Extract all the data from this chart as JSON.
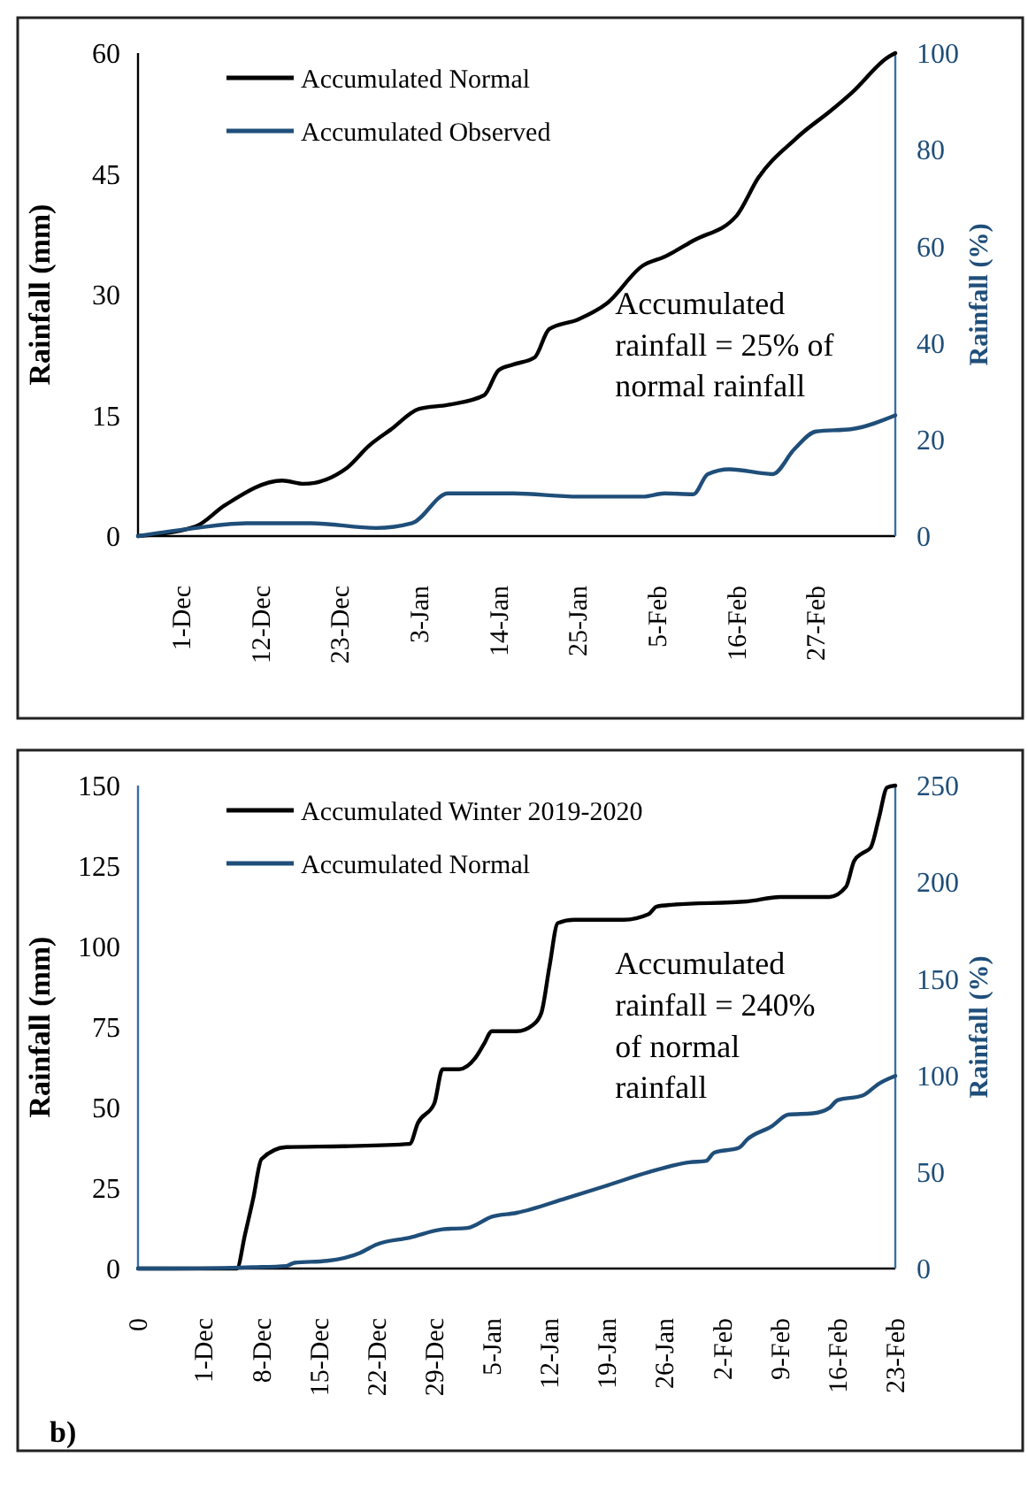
{
  "chart_data": [
    {
      "type": "line",
      "ylabel": "Rainfall (mm)",
      "y2label": "Rainfall (%)",
      "xlim": [
        "2019-11-25",
        "2020-03-09"
      ],
      "xticks": [
        {
          "value": "2019-12-01",
          "label": "1-Dec"
        },
        {
          "value": "2019-12-12",
          "label": "12-Dec"
        },
        {
          "value": "2019-12-23",
          "label": "23-Dec"
        },
        {
          "value": "2020-01-03",
          "label": "3-Jan"
        },
        {
          "value": "2020-01-14",
          "label": "14-Jan"
        },
        {
          "value": "2020-01-25",
          "label": "25-Jan"
        },
        {
          "value": "2020-02-05",
          "label": "5-Feb"
        },
        {
          "value": "2020-02-16",
          "label": "16-Feb"
        },
        {
          "value": "2020-02-27",
          "label": "27-Feb"
        }
      ],
      "ylim": [
        0,
        60
      ],
      "yticks": [
        0,
        15,
        30,
        45,
        60
      ],
      "y2lim": [
        0,
        100
      ],
      "y2ticks": [
        0,
        20,
        40,
        60,
        80,
        100
      ],
      "legend": "top left",
      "grid": false,
      "annotations": [
        "Accumulated rainfall = 25% of normal rainfall"
      ],
      "series": [
        {
          "name": "Accumulated Normal",
          "color": "#000000",
          "x": [
            "2019-11-25",
            "2019-12-03",
            "2019-12-07",
            "2019-12-15",
            "2019-12-18",
            "2019-12-24",
            "2019-12-27",
            "2019-12-30",
            "2020-01-03",
            "2020-01-07",
            "2020-01-12",
            "2020-01-14",
            "2020-01-16",
            "2020-01-19",
            "2020-01-21",
            "2020-01-25",
            "2020-01-29",
            "2020-02-03",
            "2020-02-06",
            "2020-02-10",
            "2020-02-16",
            "2020-02-19",
            "2020-02-24",
            "2020-02-25",
            "2020-02-29",
            "2020-03-03",
            "2020-03-08",
            "2020-03-09"
          ],
          "values": [
            0,
            1.2,
            3.8,
            6.9,
            6.5,
            8.5,
            11.2,
            13.2,
            15.8,
            16.3,
            17.5,
            20.6,
            21.3,
            22.2,
            25.7,
            26.9,
            28.9,
            33.6,
            34.7,
            36.7,
            39.8,
            44.5,
            49.2,
            50,
            52.8,
            55.1,
            59.5,
            60
          ]
        },
        {
          "name": "Accumulated Observed",
          "color": "#1f4e79",
          "x": [
            "2019-11-25",
            "2019-12-03",
            "2019-12-10",
            "2019-12-19",
            "2019-12-28",
            "2020-01-02",
            "2020-01-07",
            "2020-01-16",
            "2020-01-25",
            "2020-02-03",
            "2020-02-06",
            "2020-02-10",
            "2020-02-12",
            "2020-02-15",
            "2020-02-21",
            "2020-02-24",
            "2020-02-27",
            "2020-03-03",
            "2020-03-09"
          ],
          "values": [
            0,
            1,
            1.6,
            1.6,
            1,
            1.6,
            5.3,
            5.3,
            4.9,
            4.9,
            5.3,
            5.2,
            7.7,
            8.3,
            7.7,
            10.8,
            13,
            13.3,
            15
          ]
        }
      ]
    },
    {
      "type": "line",
      "ylabel": "Rainfall (mm)",
      "y2label": "Rainfall (%)",
      "xlim": [
        "2019-11-23",
        "2020-02-23"
      ],
      "xticks": [
        {
          "value": "2019-11-23",
          "label": "0"
        },
        {
          "value": "2019-12-01",
          "label": "1-Dec"
        },
        {
          "value": "2019-12-08",
          "label": "8-Dec"
        },
        {
          "value": "2019-12-15",
          "label": "15-Dec"
        },
        {
          "value": "2019-12-22",
          "label": "22-Dec"
        },
        {
          "value": "2019-12-29",
          "label": "29-Dec"
        },
        {
          "value": "2020-01-05",
          "label": "5-Jan"
        },
        {
          "value": "2020-01-12",
          "label": "12-Jan"
        },
        {
          "value": "2020-01-19",
          "label": "19-Jan"
        },
        {
          "value": "2020-01-26",
          "label": "26-Jan"
        },
        {
          "value": "2020-02-02",
          "label": "2-Feb"
        },
        {
          "value": "2020-02-09",
          "label": "9-Feb"
        },
        {
          "value": "2020-02-16",
          "label": "16-Feb"
        },
        {
          "value": "2020-02-23",
          "label": "23-Feb"
        }
      ],
      "ylim": [
        0,
        150
      ],
      "yticks": [
        0,
        25,
        50,
        75,
        100,
        125,
        150
      ],
      "y2lim": [
        0,
        250
      ],
      "y2ticks": [
        0,
        50,
        100,
        150,
        200,
        250
      ],
      "legend": "top left",
      "grid": false,
      "annotations": [
        "Accumulated rainfall = 240% of normal rainfall",
        "b)"
      ],
      "series": [
        {
          "name": "Accumulated Winter 2019-2020",
          "color": "#000000",
          "x": [
            "2019-11-23",
            "2019-12-05",
            "2019-12-06",
            "2019-12-07",
            "2019-12-08",
            "2019-12-11",
            "2019-12-18",
            "2019-12-26",
            "2019-12-27",
            "2019-12-29",
            "2019-12-30",
            "2020-01-01",
            "2020-01-03",
            "2020-01-04",
            "2020-01-05",
            "2020-01-08",
            "2020-01-10",
            "2020-01-11",
            "2020-01-12",
            "2020-01-13",
            "2020-01-15",
            "2020-01-21",
            "2020-01-24",
            "2020-01-25",
            "2020-01-27",
            "2020-02-05",
            "2020-02-09",
            "2020-02-15",
            "2020-02-17",
            "2020-02-18",
            "2020-02-19",
            "2020-02-20",
            "2020-02-21",
            "2020-02-22",
            "2020-02-23"
          ],
          "values": [
            0,
            0,
            10.6,
            21.8,
            34,
            37.7,
            38,
            38.7,
            45.2,
            51.3,
            61.9,
            61.9,
            65.5,
            69.6,
            73.7,
            73.7,
            75.7,
            79.4,
            94,
            107.3,
            108.3,
            108.3,
            110,
            112.4,
            113,
            114,
            115.4,
            115.4,
            118.5,
            126.6,
            129,
            130.7,
            139.8,
            149.4,
            150
          ]
        },
        {
          "name": "Accumulated Normal",
          "color": "#1f4e79",
          "x": [
            "2019-11-23",
            "2019-11-27",
            "2019-12-07",
            "2019-12-11",
            "2019-12-12",
            "2019-12-16",
            "2019-12-20",
            "2019-12-22",
            "2019-12-26",
            "2019-12-30",
            "2020-01-02",
            "2020-01-05",
            "2020-01-08",
            "2020-01-14",
            "2020-01-19",
            "2020-01-24",
            "2020-01-29",
            "2020-01-31",
            "2020-02-01",
            "2020-02-04",
            "2020-02-05",
            "2020-02-08",
            "2020-02-10",
            "2020-02-13",
            "2020-02-15",
            "2020-02-16",
            "2020-02-19",
            "2020-02-21",
            "2020-02-23"
          ],
          "values": [
            0,
            0,
            0.4,
            0.8,
            1.8,
            2.4,
            4.9,
            7.5,
            9.6,
            12.2,
            12.6,
            16.1,
            17.3,
            21.8,
            25.8,
            29.9,
            33,
            33.4,
            36,
            37.5,
            40.1,
            44.2,
            47.8,
            48.2,
            49.9,
            52.3,
            53.7,
            57.4,
            59.8
          ]
        }
      ]
    }
  ]
}
